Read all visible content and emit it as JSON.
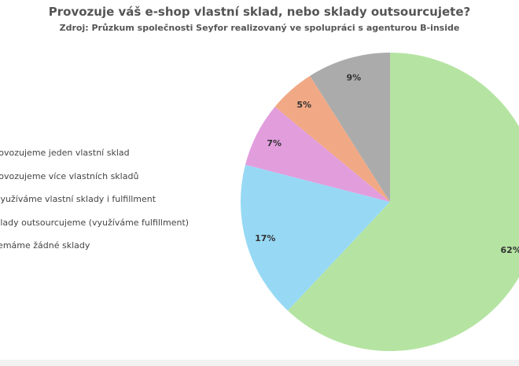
{
  "chart_data": {
    "type": "pie",
    "title": "Provozuje váš e-shop vlastní sklad, nebo sklady outsourcujete?",
    "subtitle": "Zdroj: Průzkum společnosti Seyfor realizovaný ve spolupráci s agenturou B-inside",
    "legend_position": "left",
    "legend": [
      "Provozujeme jeden vlastní sklad",
      "Provozujeme více vlastních skladů",
      "Využíváme vlastní sklady i fulfillment",
      "Sklady outsourcujeme (využíváme fulfillment)",
      "Nemáme žádné sklady"
    ],
    "legend_visible_text": [
      "rovozujeme jeden vlastní sklad",
      "rovozujeme více vlastních skladů",
      "využíváme vlastní sklady i fulfillment",
      "klady outsourcujeme (využíváme fulfillment)",
      "lemáme žádné sklady"
    ],
    "slices": [
      {
        "value": 62,
        "label": "62%",
        "color": "#b5e4a2"
      },
      {
        "value": 17,
        "label": "17%",
        "color": "#97d9f5"
      },
      {
        "value": 7,
        "label": "7%",
        "color": "#e29ddd"
      },
      {
        "value": 5,
        "label": "5%",
        "color": "#f1a985"
      },
      {
        "value": 9,
        "label": "9%",
        "color": "#ababab"
      }
    ]
  }
}
